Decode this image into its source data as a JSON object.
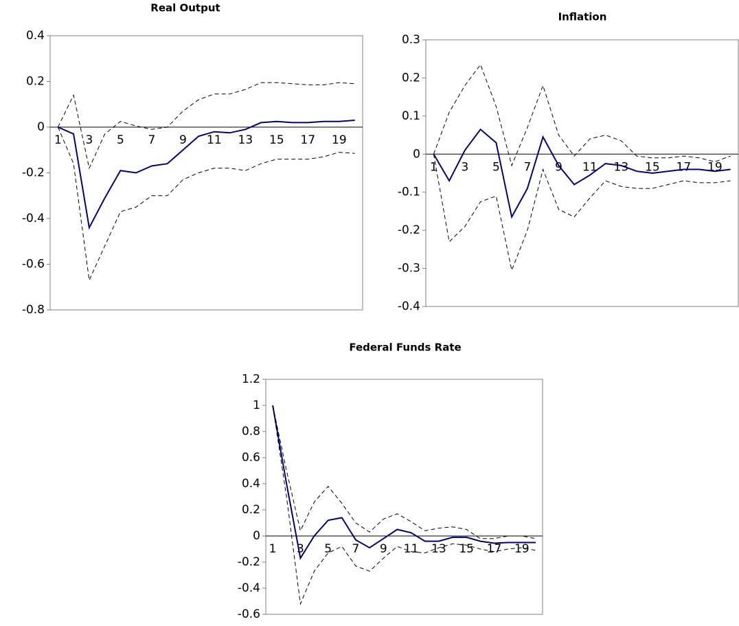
{
  "chart_data": [
    {
      "type": "line",
      "title": "Real Output",
      "categories": [
        1,
        null,
        3,
        null,
        5,
        null,
        7,
        null,
        9,
        null,
        11,
        null,
        13,
        null,
        15,
        null,
        17,
        null,
        19,
        null
      ],
      "series": [
        {
          "color": "#000080",
          "dash": false,
          "values": [
            0,
            -0.03,
            -0.44,
            -0.31,
            -0.19,
            -0.2,
            -0.17,
            -0.16,
            -0.1,
            -0.04,
            -0.02,
            -0.025,
            -0.01,
            0.02,
            0.025,
            0.02,
            0.02,
            0.025,
            0.025,
            0.03
          ]
        },
        {
          "color": "#000000",
          "dash": true,
          "values": [
            0,
            0.14,
            -0.18,
            -0.03,
            0.025,
            0.005,
            -0.01,
            0,
            0.07,
            0.12,
            0.145,
            0.145,
            0.165,
            0.195,
            0.195,
            0.19,
            0.185,
            0.185,
            0.195,
            0.19
          ]
        },
        {
          "color": "#000000",
          "dash": true,
          "values": [
            0,
            -0.16,
            -0.67,
            -0.52,
            -0.37,
            -0.35,
            -0.3,
            -0.3,
            -0.23,
            -0.2,
            -0.18,
            -0.18,
            -0.19,
            -0.16,
            -0.14,
            -0.14,
            -0.14,
            -0.13,
            -0.11,
            -0.115
          ]
        }
      ],
      "ylim": [
        -0.8,
        0.4
      ],
      "yticks": [
        -0.8,
        -0.6,
        -0.4,
        -0.2,
        0,
        0.2,
        0.4
      ]
    },
    {
      "type": "line",
      "title": "Inflation",
      "categories": [
        1,
        null,
        3,
        null,
        5,
        null,
        7,
        null,
        9,
        null,
        11,
        null,
        13,
        null,
        15,
        null,
        17,
        null,
        19,
        null
      ],
      "series": [
        {
          "color": "#000080",
          "dash": false,
          "values": [
            0,
            -0.07,
            0.01,
            0.065,
            0.03,
            -0.165,
            -0.09,
            0.045,
            -0.03,
            -0.08,
            -0.055,
            -0.025,
            -0.03,
            -0.045,
            -0.05,
            -0.045,
            -0.04,
            -0.04,
            -0.045,
            -0.04
          ]
        },
        {
          "color": "#000000",
          "dash": true,
          "values": [
            0,
            0.11,
            0.18,
            0.235,
            0.125,
            -0.03,
            0.07,
            0.18,
            0.05,
            -0.005,
            0.04,
            0.05,
            0.035,
            -0.005,
            -0.01,
            -0.01,
            -0.005,
            -0.01,
            -0.02,
            -0.005
          ]
        },
        {
          "color": "#000000",
          "dash": true,
          "values": [
            0,
            -0.23,
            -0.19,
            -0.125,
            -0.11,
            -0.305,
            -0.2,
            -0.04,
            -0.145,
            -0.165,
            -0.115,
            -0.07,
            -0.085,
            -0.09,
            -0.09,
            -0.08,
            -0.07,
            -0.075,
            -0.075,
            -0.07
          ]
        }
      ],
      "ylim": [
        -0.4,
        0.3
      ],
      "yticks": [
        -0.4,
        -0.3,
        -0.2,
        -0.1,
        0,
        0.1,
        0.2,
        0.3
      ]
    },
    {
      "type": "line",
      "title": "Federal Funds Rate",
      "categories": [
        1,
        null,
        3,
        null,
        5,
        null,
        7,
        null,
        9,
        null,
        11,
        null,
        13,
        null,
        15,
        null,
        17,
        null,
        19,
        null
      ],
      "series": [
        {
          "color": "#000080",
          "dash": false,
          "values": [
            1,
            0.4,
            -0.17,
            0,
            0.12,
            0.14,
            -0.03,
            -0.09,
            -0.02,
            0.05,
            0.025,
            -0.04,
            -0.04,
            -0.01,
            -0.01,
            -0.04,
            -0.055,
            -0.05,
            -0.05,
            -0.05
          ]
        },
        {
          "color": "#000000",
          "dash": true,
          "values": [
            1,
            0.5,
            0.04,
            0.26,
            0.38,
            0.25,
            0.1,
            0.03,
            0.13,
            0.17,
            0.11,
            0.04,
            0.06,
            0.07,
            0.05,
            -0.02,
            -0.02,
            0,
            0,
            -0.02
          ]
        },
        {
          "color": "#000000",
          "dash": true,
          "values": [
            1,
            0.3,
            -0.52,
            -0.27,
            -0.13,
            -0.08,
            -0.23,
            -0.27,
            -0.17,
            -0.08,
            -0.12,
            -0.13,
            -0.09,
            -0.06,
            -0.07,
            -0.1,
            -0.12,
            -0.1,
            -0.09,
            -0.11
          ]
        }
      ],
      "ylim": [
        -0.6,
        1.2
      ],
      "yticks": [
        -0.6,
        -0.4,
        -0.2,
        0,
        0.2,
        0.4,
        0.6,
        0.8,
        1,
        1.2
      ]
    }
  ]
}
